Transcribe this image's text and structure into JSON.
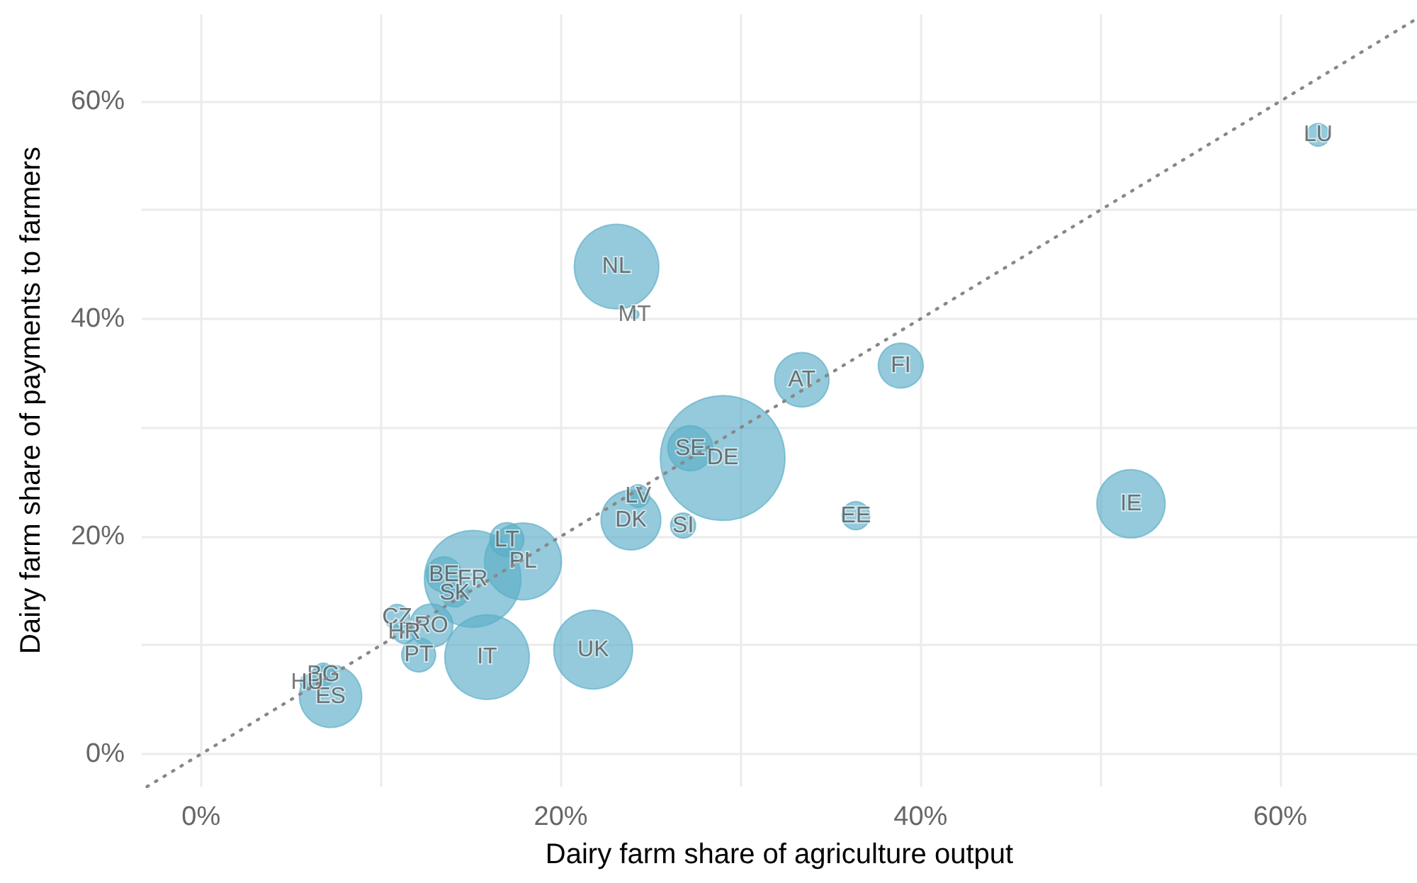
{
  "chart_data": {
    "type": "bubble",
    "xlabel": "Dairy farm share of agriculture output",
    "ylabel": "Dairy farm share of payments to farmers",
    "color": "#5aaec8",
    "grid": true,
    "legend": false,
    "xlim": [
      -3.3,
      67.6
    ],
    "ylim": [
      -3,
      68
    ],
    "xticks": [
      {
        "value": 0,
        "label": "0%"
      },
      {
        "value": 10,
        "label": null
      },
      {
        "value": 20,
        "label": "20%"
      },
      {
        "value": 30,
        "label": null
      },
      {
        "value": 40,
        "label": "40%"
      },
      {
        "value": 50,
        "label": null
      },
      {
        "value": 60,
        "label": "60%"
      }
    ],
    "yticks": [
      {
        "value": 0,
        "label": "0%"
      },
      {
        "value": 10,
        "label": null
      },
      {
        "value": 20,
        "label": "20%"
      },
      {
        "value": 30,
        "label": null
      },
      {
        "value": 40,
        "label": "40%"
      },
      {
        "value": 50,
        "label": null
      },
      {
        "value": 60,
        "label": "60%"
      }
    ],
    "series": [
      {
        "type": "line",
        "x": [
          -3,
          67.6
        ],
        "values": [
          -3,
          67.6
        ],
        "color": "#888888",
        "line_style": "dotted",
        "marker": "none"
      },
      {
        "name": "DE",
        "x": [
          29.0
        ],
        "values": [
          27.2
        ],
        "sizes": [
          1
        ]
      },
      {
        "name": "FR",
        "x": [
          15.1
        ],
        "values": [
          16.1
        ],
        "sizes": [
          0.6
        ]
      },
      {
        "name": "IT",
        "x": [
          15.9
        ],
        "values": [
          8.9
        ],
        "sizes": [
          0.46
        ]
      },
      {
        "name": "NL",
        "x": [
          23.1
        ],
        "values": [
          44.8
        ],
        "sizes": [
          0.46
        ]
      },
      {
        "name": "UK",
        "x": [
          21.8
        ],
        "values": [
          9.6
        ],
        "sizes": [
          0.4
        ]
      },
      {
        "name": "PL",
        "x": [
          17.9
        ],
        "values": [
          17.7
        ],
        "sizes": [
          0.38
        ]
      },
      {
        "name": "IE",
        "x": [
          51.7
        ],
        "values": [
          23.0
        ],
        "sizes": [
          0.3
        ]
      },
      {
        "name": "ES",
        "x": [
          7.2
        ],
        "values": [
          5.3
        ],
        "sizes": [
          0.25
        ]
      },
      {
        "name": "DK",
        "x": [
          23.9
        ],
        "values": [
          21.5
        ],
        "sizes": [
          0.23
        ]
      },
      {
        "name": "AT",
        "x": [
          33.4
        ],
        "values": [
          34.4
        ],
        "sizes": [
          0.19
        ]
      },
      {
        "name": "FI",
        "x": [
          38.9
        ],
        "values": [
          35.7
        ],
        "sizes": [
          0.13
        ]
      },
      {
        "name": "SE",
        "x": [
          27.2
        ],
        "values": [
          28.1
        ],
        "sizes": [
          0.13
        ]
      },
      {
        "name": "RO",
        "x": [
          12.8
        ],
        "values": [
          11.8
        ],
        "sizes": [
          0.12
        ]
      },
      {
        "name": "BE",
        "x": [
          13.5
        ],
        "values": [
          16.5
        ],
        "sizes": [
          0.08
        ]
      },
      {
        "name": "LT",
        "x": [
          17.0
        ],
        "values": [
          19.7
        ],
        "sizes": [
          0.074
        ]
      },
      {
        "name": "PT",
        "x": [
          12.1
        ],
        "values": [
          9.1
        ],
        "sizes": [
          0.074
        ]
      },
      {
        "name": "SK",
        "x": [
          14.1
        ],
        "values": [
          14.8
        ],
        "sizes": [
          0.05
        ]
      },
      {
        "name": "EE",
        "x": [
          36.4
        ],
        "values": [
          21.9
        ],
        "sizes": [
          0.05
        ]
      },
      {
        "name": "CZ",
        "x": [
          10.9
        ],
        "values": [
          12.6
        ],
        "sizes": [
          0.04
        ]
      },
      {
        "name": "SI",
        "x": [
          26.8
        ],
        "values": [
          21.0
        ],
        "sizes": [
          0.04
        ]
      },
      {
        "name": "LV",
        "x": [
          24.3
        ],
        "values": [
          23.7
        ],
        "sizes": [
          0.033
        ]
      },
      {
        "name": "LU",
        "x": [
          62.1
        ],
        "values": [
          56.9
        ],
        "sizes": [
          0.033
        ]
      },
      {
        "name": "BG",
        "x": [
          6.8
        ],
        "values": [
          7.3
        ],
        "sizes": [
          0.033
        ]
      },
      {
        "name": "HR",
        "x": [
          11.3
        ],
        "values": [
          11.2
        ],
        "sizes": [
          0.033
        ]
      },
      {
        "name": "HU",
        "x": [
          5.9
        ],
        "values": [
          6.6
        ],
        "sizes": [
          0.013
        ]
      },
      {
        "name": "MT",
        "x": [
          24.1
        ],
        "values": [
          40.4
        ],
        "sizes": [
          0.005
        ]
      }
    ]
  }
}
